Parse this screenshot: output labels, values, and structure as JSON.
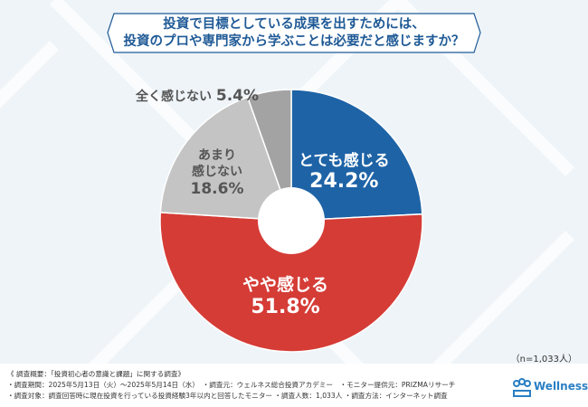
{
  "title": {
    "line1": "投資で目標としている成果を出すためには、",
    "line2": "投資のプロや専門家から学ぶことは必要だと感じますか？"
  },
  "chart_data": {
    "type": "pie",
    "donut": true,
    "categories": [
      "とても感じる",
      "やや感じる",
      "あまり感じない",
      "全く感じない"
    ],
    "values": [
      24.2,
      51.8,
      18.6,
      5.4
    ],
    "labels": [
      "24.2%",
      "51.8%",
      "18.6%",
      "5.4%"
    ],
    "colors": [
      "#1e63a6",
      "#d53c36",
      "#c4c4c4",
      "#a3a3a3"
    ]
  },
  "sample": "（n=1,033人）",
  "footer": {
    "line1": "《 調査概要：「投資初心者の意識と課題」に関する調査》",
    "line2": "・調査期間：2025年5月13日（火）～2025年5月14日（水）　・調査元：ウェルネス総合投資アカデミー　・モニター提供元：PRIZMAリサーチ",
    "line3": "・調査対象：調査回答時に現在投資を行っている投資経験3年以内と回答したモニター  ・調査人数：1,033人  ・調査方法：インターネット調査"
  },
  "logo": {
    "text": "Wellness"
  }
}
